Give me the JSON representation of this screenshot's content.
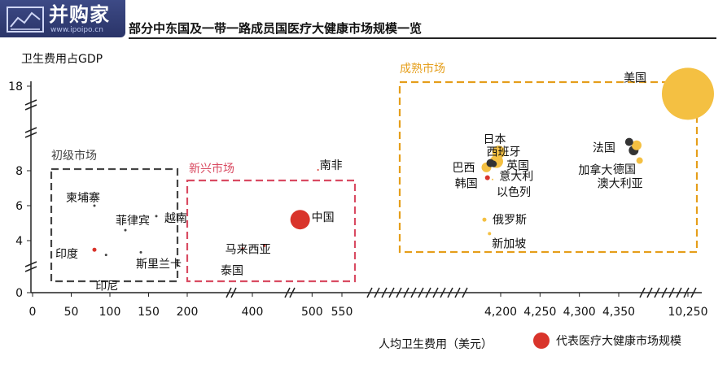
{
  "header": {
    "logo_text": "并购家",
    "logo_url": "www.ipoipo.cn",
    "title": "部分中东国及一带一路成员国医疗大健康市场规模一览"
  },
  "legend": {
    "label": "代表医疗大健康市场规模",
    "color": "#d9342b"
  },
  "colors": {
    "china": "#d9342b",
    "mature": "#f4c042",
    "emerging_box": "#d94b62",
    "primary_box": "#444444",
    "mature_box": "#e59e1a",
    "dark_point": "#333333"
  },
  "chart_data": {
    "type": "scatter",
    "title": "部分中东国及一带一路成员国医疗大健康市场规模一览",
    "xlabel": "人均卫生费用（美元）",
    "ylabel": "卫生费用占GDP",
    "x_axis": {
      "broken": true,
      "tick_labels": [
        "0",
        "50",
        "100",
        "150",
        "200",
        "400",
        "500",
        "550",
        "4,200",
        "4,250",
        "4,300",
        "4,350",
        "10,250"
      ]
    },
    "y_axis": {
      "broken": true,
      "tick_labels": [
        "0",
        "4",
        "6",
        "8",
        "18"
      ]
    },
    "groups": [
      {
        "name": "初级市场",
        "members": [
          "柬埔寨",
          "越南",
          "菲律宾",
          "印度",
          "斯里兰卡",
          "印尼"
        ]
      },
      {
        "name": "新兴市场",
        "members": [
          "马来西亚",
          "泰国",
          "中国",
          "南非"
        ]
      },
      {
        "name": "成熟市场",
        "members": [
          "巴西",
          "西班牙",
          "日本",
          "英国",
          "意大利",
          "以色列",
          "韩国",
          "俄罗斯",
          "新加坡",
          "美国",
          "法国",
          "加拿大",
          "德国",
          "澳大利亚"
        ]
      }
    ],
    "points": [
      {
        "label": "柬埔寨",
        "x": 80,
        "y": 6.0
      },
      {
        "label": "越南",
        "x": 160,
        "y": 5.4
      },
      {
        "label": "菲律宾",
        "x": 120,
        "y": 4.6
      },
      {
        "label": "印度",
        "x": 80,
        "y": 3.3
      },
      {
        "label": "斯里兰卡",
        "x": 140,
        "y": 3.1
      },
      {
        "label": "印尼",
        "x": 95,
        "y": 2.9
      },
      {
        "label": "马来西亚",
        "x": 420,
        "y": 3.6
      },
      {
        "label": "泰国",
        "x": 370,
        "y": 3.4
      },
      {
        "label": "中国",
        "x": 480,
        "y": 5.2
      },
      {
        "label": "南非",
        "x": 510,
        "y": 8.1
      },
      {
        "label": "巴西",
        "x": 4060,
        "y": 8.4
      },
      {
        "label": "西班牙",
        "x": 4100,
        "y": 8.9
      },
      {
        "label": "日本",
        "x": 4180,
        "y": 10.2
      },
      {
        "label": "英国",
        "x": 4160,
        "y": 9.1
      },
      {
        "label": "意大利",
        "x": 4130,
        "y": 8.8
      },
      {
        "label": "以色列",
        "x": 4120,
        "y": 7.5
      },
      {
        "label": "韩国",
        "x": 4070,
        "y": 7.6
      },
      {
        "label": "俄罗斯",
        "x": 4040,
        "y": 5.2
      },
      {
        "label": "新加坡",
        "x": 4090,
        "y": 4.4
      },
      {
        "label": "美国",
        "x": 10250,
        "y": 17.1
      },
      {
        "label": "法国",
        "x": 4385,
        "y": 11.4
      },
      {
        "label": "加拿大",
        "x": 4400,
        "y": 10.4
      },
      {
        "label": "德国",
        "x": 4410,
        "y": 11.0
      },
      {
        "label": "澳大利亚",
        "x": 4420,
        "y": 9.2
      }
    ],
    "grid": false,
    "legend_position": "bottom-right"
  }
}
